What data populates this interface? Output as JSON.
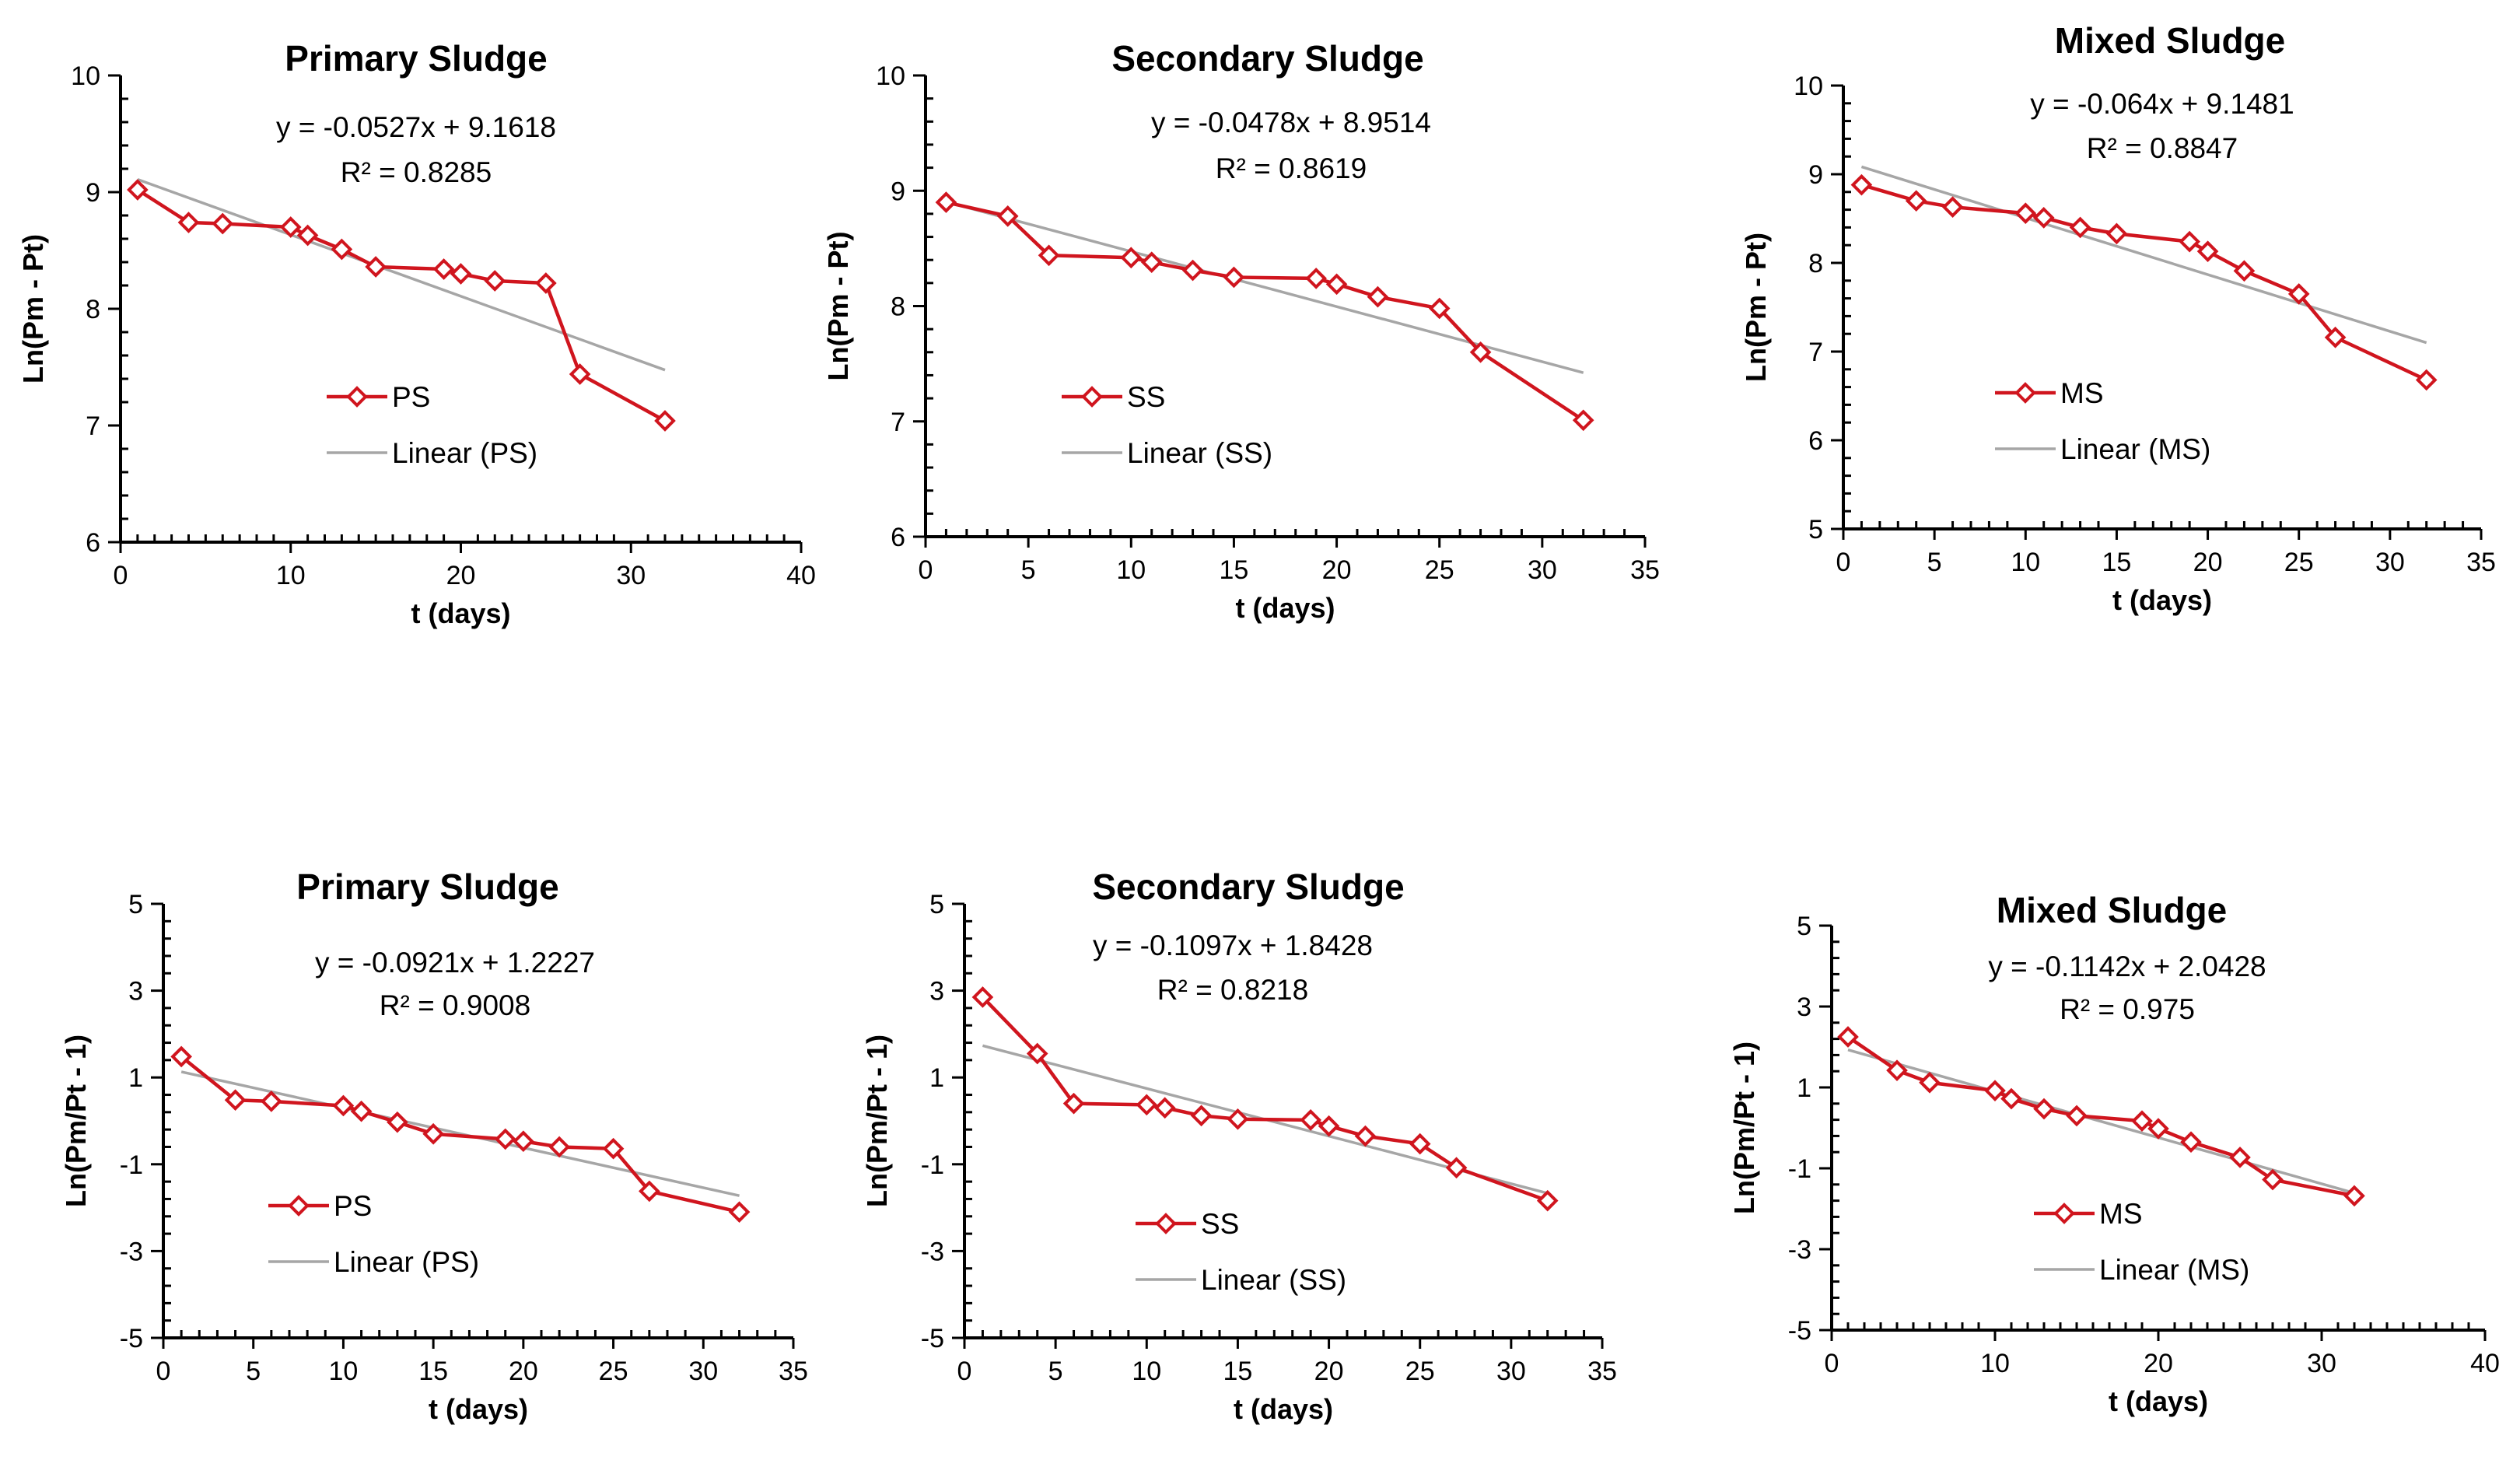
{
  "colors": {
    "series": "#d0151e",
    "trend": "#a6a6a6",
    "axis": "#000000"
  },
  "chart_data": [
    {
      "type": "line",
      "title": "Primary Sludge",
      "xlabel": "t (days)",
      "ylabel": "Ln(Pm - Pt)",
      "xlim": [
        0,
        40
      ],
      "ylim": [
        6,
        10
      ],
      "xticks": [
        "0",
        "10",
        "20",
        "30",
        "40"
      ],
      "yticks": [
        "6",
        "7",
        "8",
        "9",
        "10"
      ],
      "equation": "y = -0.0527x + 9.1618",
      "r2": "R² = 0.8285",
      "legend": [
        "PS",
        "Linear (PS)"
      ],
      "trend": {
        "slope": -0.0527,
        "intercept": 9.1618,
        "x_range": [
          1,
          32
        ]
      },
      "series": [
        {
          "name": "PS",
          "x": [
            1,
            4,
            6,
            10,
            11,
            13,
            15,
            19,
            20,
            22,
            25,
            27,
            32
          ],
          "y": [
            9.02,
            8.74,
            8.73,
            8.7,
            8.63,
            8.51,
            8.36,
            8.34,
            8.3,
            8.24,
            8.22,
            7.44,
            7.04
          ]
        }
      ]
    },
    {
      "type": "line",
      "title": "Secondary Sludge",
      "xlabel": "t (days)",
      "ylabel": "Ln(Pm - Pt)",
      "xlim": [
        0,
        35
      ],
      "ylim": [
        6,
        10
      ],
      "xticks": [
        "0",
        "5",
        "10",
        "15",
        "20",
        "25",
        "30",
        "35"
      ],
      "yticks": [
        "6",
        "7",
        "8",
        "9",
        "10"
      ],
      "equation": "y = -0.0478x + 8.9514",
      "r2": "R² = 0.8619",
      "legend": [
        "SS",
        "Linear (SS)"
      ],
      "trend": {
        "slope": -0.0478,
        "intercept": 8.9514,
        "x_range": [
          1,
          32
        ]
      },
      "series": [
        {
          "name": "SS",
          "x": [
            1,
            4,
            6,
            10,
            11,
            13,
            15,
            19,
            20,
            22,
            25,
            27,
            32
          ],
          "y": [
            8.9,
            8.78,
            8.44,
            8.42,
            8.38,
            8.31,
            8.25,
            8.24,
            8.19,
            8.08,
            7.98,
            7.6,
            7.01
          ]
        }
      ]
    },
    {
      "type": "line",
      "title": "Mixed Sludge",
      "xlabel": "t (days)",
      "ylabel": "Ln(Pm - Pt)",
      "xlim": [
        0,
        35
      ],
      "ylim": [
        5,
        10
      ],
      "xticks": [
        "0",
        "5",
        "10",
        "15",
        "20",
        "25",
        "30",
        "35"
      ],
      "yticks": [
        "5",
        "6",
        "7",
        "8",
        "9",
        "10"
      ],
      "equation": "y = -0.064x + 9.1481",
      "r2": "R² = 0.8847",
      "legend": [
        "MS",
        "Linear (MS)"
      ],
      "trend": {
        "slope": -0.064,
        "intercept": 9.1481,
        "x_range": [
          1,
          32
        ]
      },
      "series": [
        {
          "name": "MS",
          "x": [
            1,
            4,
            6,
            10,
            11,
            13,
            15,
            19,
            20,
            22,
            25,
            27,
            32
          ],
          "y": [
            8.88,
            8.7,
            8.63,
            8.56,
            8.51,
            8.4,
            8.33,
            8.24,
            8.13,
            7.91,
            7.65,
            7.16,
            6.68
          ]
        }
      ]
    },
    {
      "type": "line",
      "title": "Primary Sludge",
      "xlabel": "t (days)",
      "ylabel": "Ln(Pm/Pt - 1)",
      "xlim": [
        0,
        35
      ],
      "ylim": [
        -5,
        5
      ],
      "xticks": [
        "0",
        "5",
        "10",
        "15",
        "20",
        "25",
        "30",
        "35"
      ],
      "yticks": [
        "-5",
        "-3",
        "-1",
        "1",
        "3",
        "5"
      ],
      "equation": "y = -0.0921x + 1.2227",
      "r2": "R² = 0.9008",
      "legend": [
        "PS",
        "Linear (PS)"
      ],
      "trend": {
        "slope": -0.0921,
        "intercept": 1.2227,
        "x_range": [
          1,
          32
        ]
      },
      "series": [
        {
          "name": "PS",
          "x": [
            1,
            4,
            6,
            10,
            11,
            13,
            15,
            19,
            20,
            22,
            25,
            27,
            32
          ],
          "y": [
            1.48,
            0.48,
            0.45,
            0.35,
            0.22,
            -0.03,
            -0.3,
            -0.42,
            -0.47,
            -0.6,
            -0.64,
            -1.62,
            -2.1
          ]
        }
      ]
    },
    {
      "type": "line",
      "title": "Secondary Sludge",
      "xlabel": "t (days)",
      "ylabel": "Ln(Pm/Pt - 1)",
      "xlim": [
        0,
        35
      ],
      "ylim": [
        -5,
        5
      ],
      "xticks": [
        "0",
        "5",
        "10",
        "15",
        "20",
        "25",
        "30",
        "35"
      ],
      "yticks": [
        "-5",
        "-3",
        "-1",
        "1",
        "3",
        "5"
      ],
      "equation": "y = -0.1097x + 1.8428",
      "r2": "R² = 0.8218",
      "legend": [
        "SS",
        "Linear (SS)"
      ],
      "trend": {
        "slope": -0.1097,
        "intercept": 1.8428,
        "x_range": [
          1,
          32
        ]
      },
      "series": [
        {
          "name": "SS",
          "x": [
            1,
            4,
            6,
            10,
            11,
            13,
            15,
            19,
            20,
            22,
            25,
            27,
            32
          ],
          "y": [
            2.85,
            1.55,
            0.4,
            0.37,
            0.3,
            0.12,
            0.04,
            0.02,
            -0.12,
            -0.35,
            -0.53,
            -1.08,
            -1.84
          ]
        }
      ]
    },
    {
      "type": "line",
      "title": "Mixed Sludge",
      "xlabel": "t (days)",
      "ylabel": "Ln(Pm/Pt - 1)",
      "xlim": [
        0,
        40
      ],
      "ylim": [
        -5,
        5
      ],
      "xticks": [
        "0",
        "10",
        "20",
        "30",
        "40"
      ],
      "yticks": [
        "-5",
        "-3",
        "-1",
        "1",
        "3",
        "5"
      ],
      "equation": "y = -0.1142x + 2.0428",
      "r2": "R² = 0.975",
      "legend": [
        "MS",
        "Linear (MS)"
      ],
      "trend": {
        "slope": -0.1142,
        "intercept": 2.0428,
        "x_range": [
          1,
          32
        ]
      },
      "series": [
        {
          "name": "MS",
          "x": [
            1,
            4,
            6,
            10,
            11,
            13,
            15,
            19,
            20,
            22,
            25,
            27,
            32
          ],
          "y": [
            2.25,
            1.42,
            1.12,
            0.92,
            0.72,
            0.47,
            0.3,
            0.17,
            -0.02,
            -0.35,
            -0.73,
            -1.28,
            -1.68
          ]
        }
      ]
    }
  ]
}
